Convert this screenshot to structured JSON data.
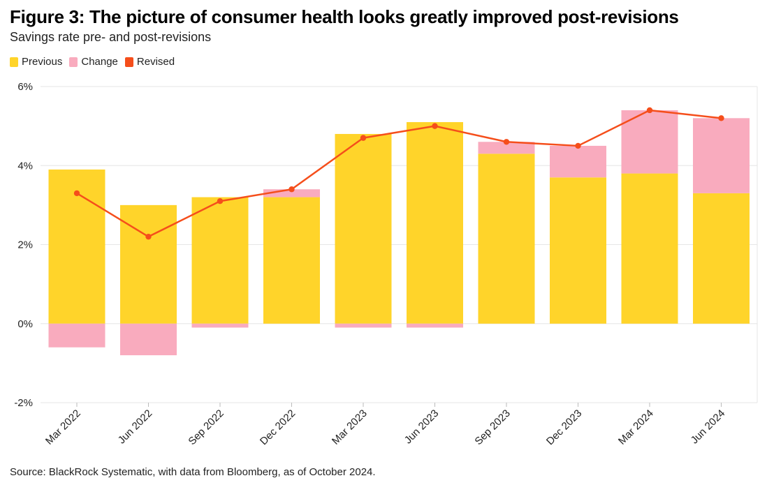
{
  "header": {
    "title": "Figure 3: The picture of consumer health looks greatly improved post-revisions",
    "subtitle": "Savings rate pre- and post-revisions"
  },
  "legend": [
    {
      "label": "Previous",
      "color": "#FFD42A"
    },
    {
      "label": "Change",
      "color": "#F9ABBE"
    },
    {
      "label": "Revised",
      "color": "#F54E1B"
    }
  ],
  "footer": {
    "source": "Source: BlackRock Systematic, with data from Bloomberg, as of October 2024."
  },
  "chart_data": {
    "type": "bar",
    "categories": [
      "Mar 2022",
      "Jun 2022",
      "Sep 2022",
      "Dec 2022",
      "Mar 2023",
      "Jun 2023",
      "Sep 2023",
      "Dec 2023",
      "Mar 2024",
      "Jun 2024"
    ],
    "series": [
      {
        "name": "Previous",
        "type": "bar",
        "color": "#FFD42A",
        "values": [
          3.9,
          3.0,
          3.2,
          3.2,
          4.8,
          5.1,
          4.3,
          3.7,
          3.8,
          3.3
        ]
      },
      {
        "name": "Change",
        "type": "bar",
        "color": "#F9ABBE",
        "values": [
          -0.6,
          -0.8,
          -0.1,
          0.2,
          -0.1,
          -0.1,
          0.3,
          0.8,
          1.6,
          1.9
        ]
      },
      {
        "name": "Revised",
        "type": "line",
        "color": "#F54E1B",
        "values": [
          3.3,
          2.2,
          3.1,
          3.4,
          4.7,
          5.0,
          4.6,
          4.5,
          5.4,
          5.2
        ]
      }
    ],
    "yticks": [
      -2,
      0,
      2,
      4,
      6
    ],
    "ytick_labels": [
      "-2%",
      "0%",
      "2%",
      "4%",
      "6%"
    ],
    "ylim": [
      -2,
      6
    ],
    "xlabel": "",
    "ylabel": "",
    "grid": true,
    "legend_position": "top-left"
  }
}
